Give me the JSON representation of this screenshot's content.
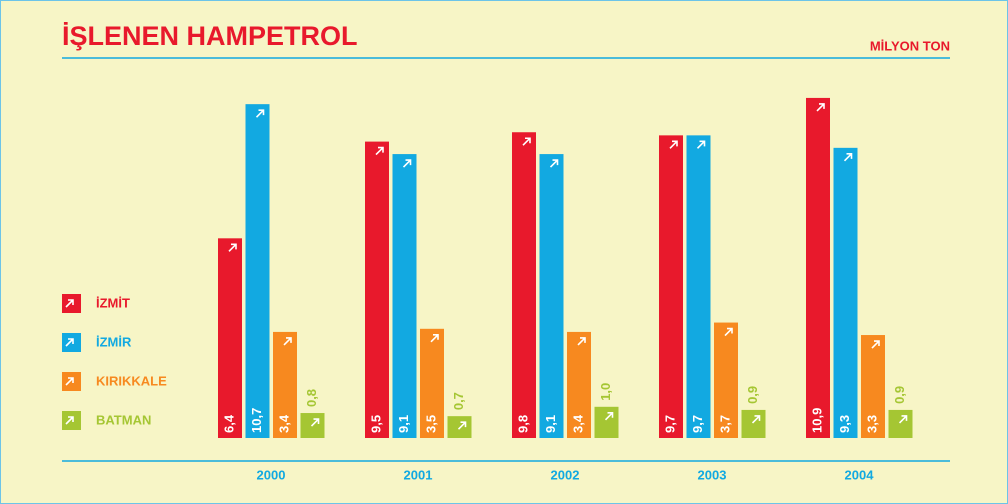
{
  "chart_data": {
    "type": "bar",
    "title": "İŞLENEN HAMPETROL",
    "subtitle": "MİLYON TON",
    "categories": [
      "2000",
      "2001",
      "2002",
      "2003",
      "2004"
    ],
    "series": [
      {
        "name": "İZMİT",
        "color": "#e8192c",
        "values": [
          6.4,
          9.5,
          9.8,
          9.7,
          10.9
        ],
        "value_labels": [
          "6,4",
          "9,5",
          "9,8",
          "9,7",
          "10,9"
        ]
      },
      {
        "name": "İZMİR",
        "color": "#12a9e1",
        "values": [
          10.7,
          9.1,
          9.1,
          9.7,
          9.3
        ],
        "value_labels": [
          "10,7",
          "9,1",
          "9,1",
          "9,7",
          "9,3"
        ]
      },
      {
        "name": "KIRIKKALE",
        "color": "#f7891f",
        "values": [
          3.4,
          3.5,
          3.4,
          3.7,
          3.3
        ],
        "value_labels": [
          "3,4",
          "3,5",
          "3,4",
          "3,7",
          "3,3"
        ]
      },
      {
        "name": "BATMAN",
        "color": "#a5c633",
        "values": [
          0.8,
          0.7,
          1.0,
          0.9,
          0.9
        ],
        "value_labels": [
          "0,8",
          "0,7",
          "1,0",
          "0,9",
          "0,9"
        ]
      }
    ]
  }
}
